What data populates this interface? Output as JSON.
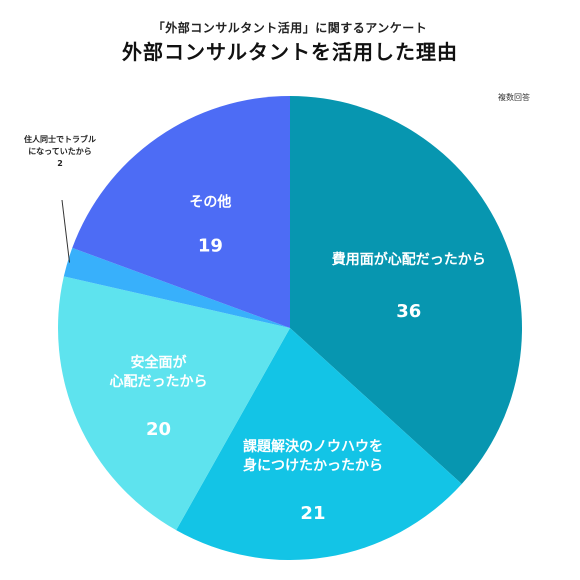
{
  "chart_data": {
    "type": "pie",
    "subtitle": "「外部コンサルタント活用」に関するアンケート",
    "title": "外部コンサルタントを活用した理由",
    "note": "複数回答",
    "slices": [
      {
        "label_lines": [
          "費用面が心配だったから"
        ],
        "value": 36,
        "color": "#0796b0"
      },
      {
        "label_lines": [
          "課題解決のノウハウを",
          "身につけたかったから"
        ],
        "value": 21,
        "color": "#13c4e6"
      },
      {
        "label_lines": [
          "安全面が",
          "心配だったから"
        ],
        "value": 20,
        "color": "#5ee3ee"
      },
      {
        "label_lines": [
          "住人同士でトラブル",
          "になっていたから"
        ],
        "value": 2,
        "color": "#38b0fb"
      },
      {
        "label_lines": [
          "その他"
        ],
        "value": 19,
        "color": "#4d6cf5"
      }
    ]
  }
}
